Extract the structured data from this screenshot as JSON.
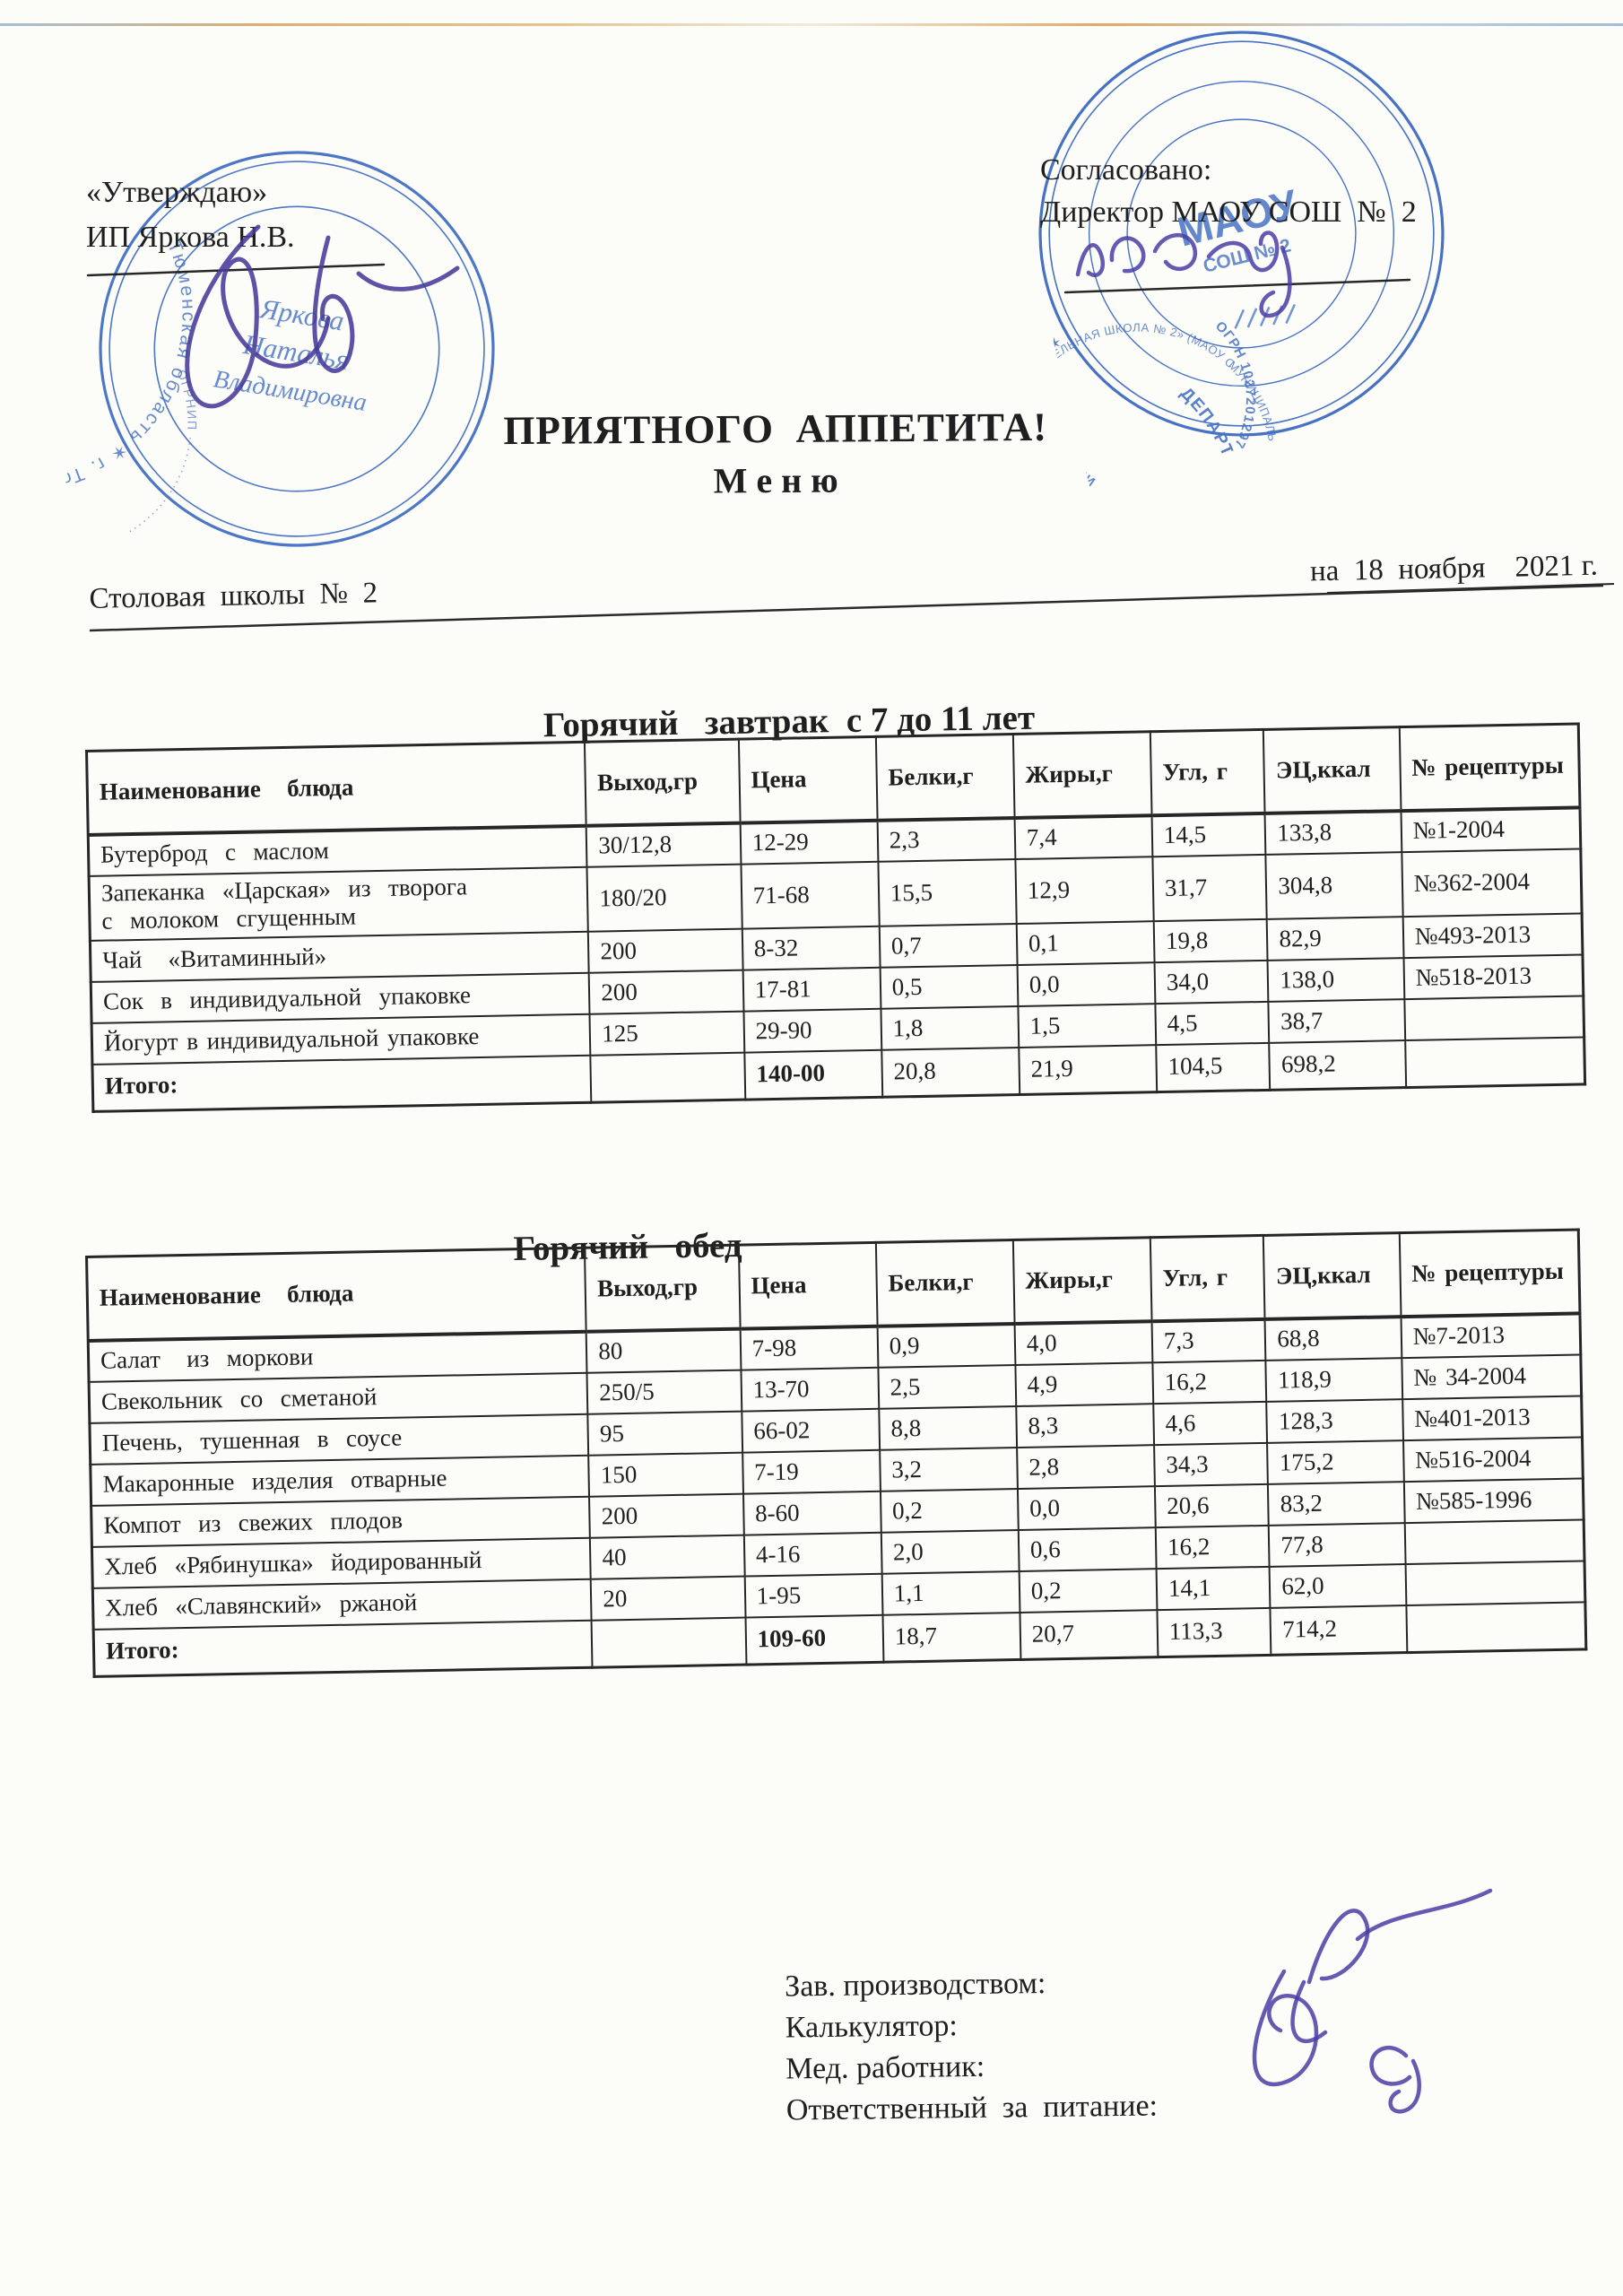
{
  "colors": {
    "stamp_blue": "#3e6bc2",
    "ink_blue": "#473a99",
    "text": "#1f1f1f"
  },
  "header": {
    "approve_label": "«Утверждаю»",
    "approve_name": "ИП Яркова Н.В.",
    "agree_label": "Согласовано:",
    "agree_name": "Директор МАОУ СОШ  №  2"
  },
  "title": {
    "line1": "ПРИЯТНОГО  АППЕТИТА!",
    "line2": "М е н ю"
  },
  "meta": {
    "canteen": "Столовая  школы  №  2",
    "date": "на  18  ноября    2021 г."
  },
  "stamps": {
    "left": {
      "ring_outer": "Тюменская область ✶ г. Тобольск ✶ Индивидуальный предприниматель ✶",
      "ring_inner": "ОГРНИП ······················· ИНН ·················",
      "center_lines": [
        "Яркова",
        "Наталья",
        "Владимировна"
      ]
    },
    "right": {
      "ring_outer": "ДЕПАРТАМЕНТ ПО ОБРАЗОВАНИЮ АДМИНИСТРАЦИИ ГОРОДА ТОБОЛЬСКА ✶ ОГРН 1027201297 ✶",
      "ring_middle": "МУНИЦИПАЛЬНОЕ АВТОНОМНОЕ ОБЩЕОБРАЗОВАТЕЛЬНОЕ УЧРЕЖДЕНИЕ «СРЕДНЯЯ ОБЩЕОБРАЗОВАТЕЛЬНАЯ ШКОЛА № 2» (МАОУ СОШ № 2)",
      "ring_inner": "ОГРН 1027201297 ✶ ОКПО 39356954 ✶ ИНН 7206010326",
      "center_top": "МАОУ",
      "center_bottom": "СОШ № 2"
    }
  },
  "tables": [
    {
      "title": "Горячий   завтрак  с 7 до 11 лет",
      "columns": [
        "Наименование   блюда",
        "Выход,гр",
        "Цена",
        "Белки,г",
        "Жиры,г",
        "Угл, г",
        "ЭЦ,ккал",
        "№ рецептуры"
      ],
      "rows": [
        [
          "Бутерброд  с  маслом",
          "30/12,8",
          "12-29",
          "2,3",
          "7,4",
          "14,5",
          "133,8",
          "№1-2004"
        ],
        [
          "Запеканка  «Царская»  из  творога\nс  молоком  сгущенным",
          "180/20",
          "71-68",
          "15,5",
          "12,9",
          "31,7",
          "304,8",
          "№362-2004"
        ],
        [
          "Чай   «Витаминный»",
          "200",
          "8-32",
          "0,7",
          "0,1",
          "19,8",
          "82,9",
          "№493-2013"
        ],
        [
          "Сок  в  индивидуальной  упаковке",
          "200",
          "17-81",
          "0,5",
          "0,0",
          "34,0",
          "138,0",
          "№518-2013"
        ],
        [
          "Йогурт в индивидуальной упаковке",
          "125",
          "29-90",
          "1,8",
          "1,5",
          "4,5",
          "38,7",
          ""
        ],
        [
          "Итого:",
          "",
          "140-00",
          "20,8",
          "21,9",
          "104,5",
          "698,2",
          ""
        ]
      ]
    },
    {
      "title": "Горячий   обед",
      "columns": [
        "Наименование   блюда",
        "Выход,гр",
        "Цена",
        "Белки,г",
        "Жиры,г",
        "Угл, г",
        "ЭЦ,ккал",
        "№ рецептуры"
      ],
      "rows": [
        [
          "Салат   из  моркови",
          "80",
          "7-98",
          "0,9",
          "4,0",
          "7,3",
          "68,8",
          "№7-2013"
        ],
        [
          "Свекольник  со  сметаной",
          "250/5",
          "13-70",
          "2,5",
          "4,9",
          "16,2",
          "118,9",
          "№ 34-2004"
        ],
        [
          "Печень,  тушенная  в  соусе",
          "95",
          "66-02",
          "8,8",
          "8,3",
          "4,6",
          "128,3",
          "№401-2013"
        ],
        [
          "Макаронные  изделия  отварные",
          "150",
          "7-19",
          "3,2",
          "2,8",
          "34,3",
          "175,2",
          "№516-2004"
        ],
        [
          "Компот  из  свежих  плодов",
          "200",
          "8-60",
          "0,2",
          "0,0",
          "20,6",
          "83,2",
          "№585-1996"
        ],
        [
          "Хлеб  «Рябинушка»  йодированный",
          "40",
          "4-16",
          "2,0",
          "0,6",
          "16,2",
          "77,8",
          ""
        ],
        [
          "Хлеб  «Славянский»  ржаной",
          "20",
          "1-95",
          "1,1",
          "0,2",
          "14,1",
          "62,0",
          ""
        ],
        [
          "Итого:",
          "",
          "109-60",
          "18,7",
          "20,7",
          "113,3",
          "714,2",
          ""
        ]
      ]
    }
  ],
  "footer": {
    "labels": [
      "Зав. производством:",
      "Калькулятор:",
      "Мед. работник:",
      "Ответственный  за  питание:"
    ]
  }
}
